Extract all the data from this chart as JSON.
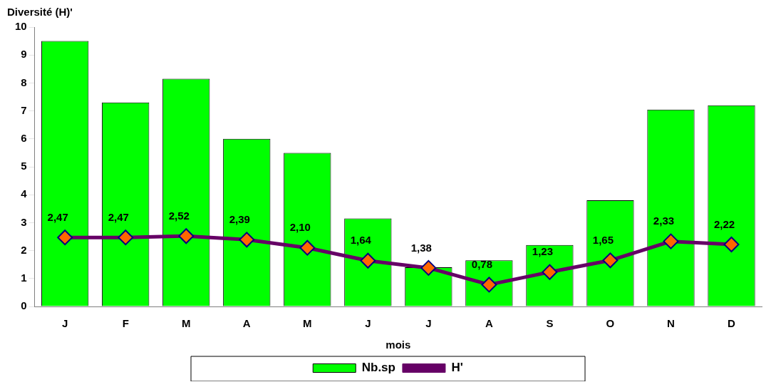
{
  "chart_data": {
    "type": "bar",
    "ylabel": "Diversité (H)'",
    "xlabel": "mois",
    "categories": [
      "J",
      "F",
      "M",
      "A",
      "M",
      "J",
      "J",
      "A",
      "S",
      "O",
      "N",
      "D"
    ],
    "series": [
      {
        "name": "Nb.sp",
        "color": "#00ff00",
        "values": [
          9.5,
          7.3,
          8.15,
          6.0,
          5.5,
          3.15,
          1.4,
          1.65,
          2.2,
          3.8,
          7.05,
          7.2
        ]
      },
      {
        "name": "H'",
        "type": "line",
        "color": "#660066",
        "marker": "diamond",
        "values": [
          2.47,
          2.47,
          2.52,
          2.39,
          2.1,
          1.64,
          1.38,
          0.78,
          1.23,
          1.65,
          2.33,
          2.22
        ],
        "value_labels": [
          "2,47",
          "2,47",
          "2,52",
          "2,39",
          "2,10",
          "1,64",
          "1,38",
          "0,78",
          "1,23",
          "1,65",
          "2,33",
          "2,22"
        ]
      }
    ],
    "ylim": [
      0,
      10
    ],
    "yticks": [
      0,
      1,
      2,
      3,
      4,
      5,
      6,
      7,
      8,
      9,
      10
    ],
    "grid": false,
    "legend": "bottom"
  }
}
